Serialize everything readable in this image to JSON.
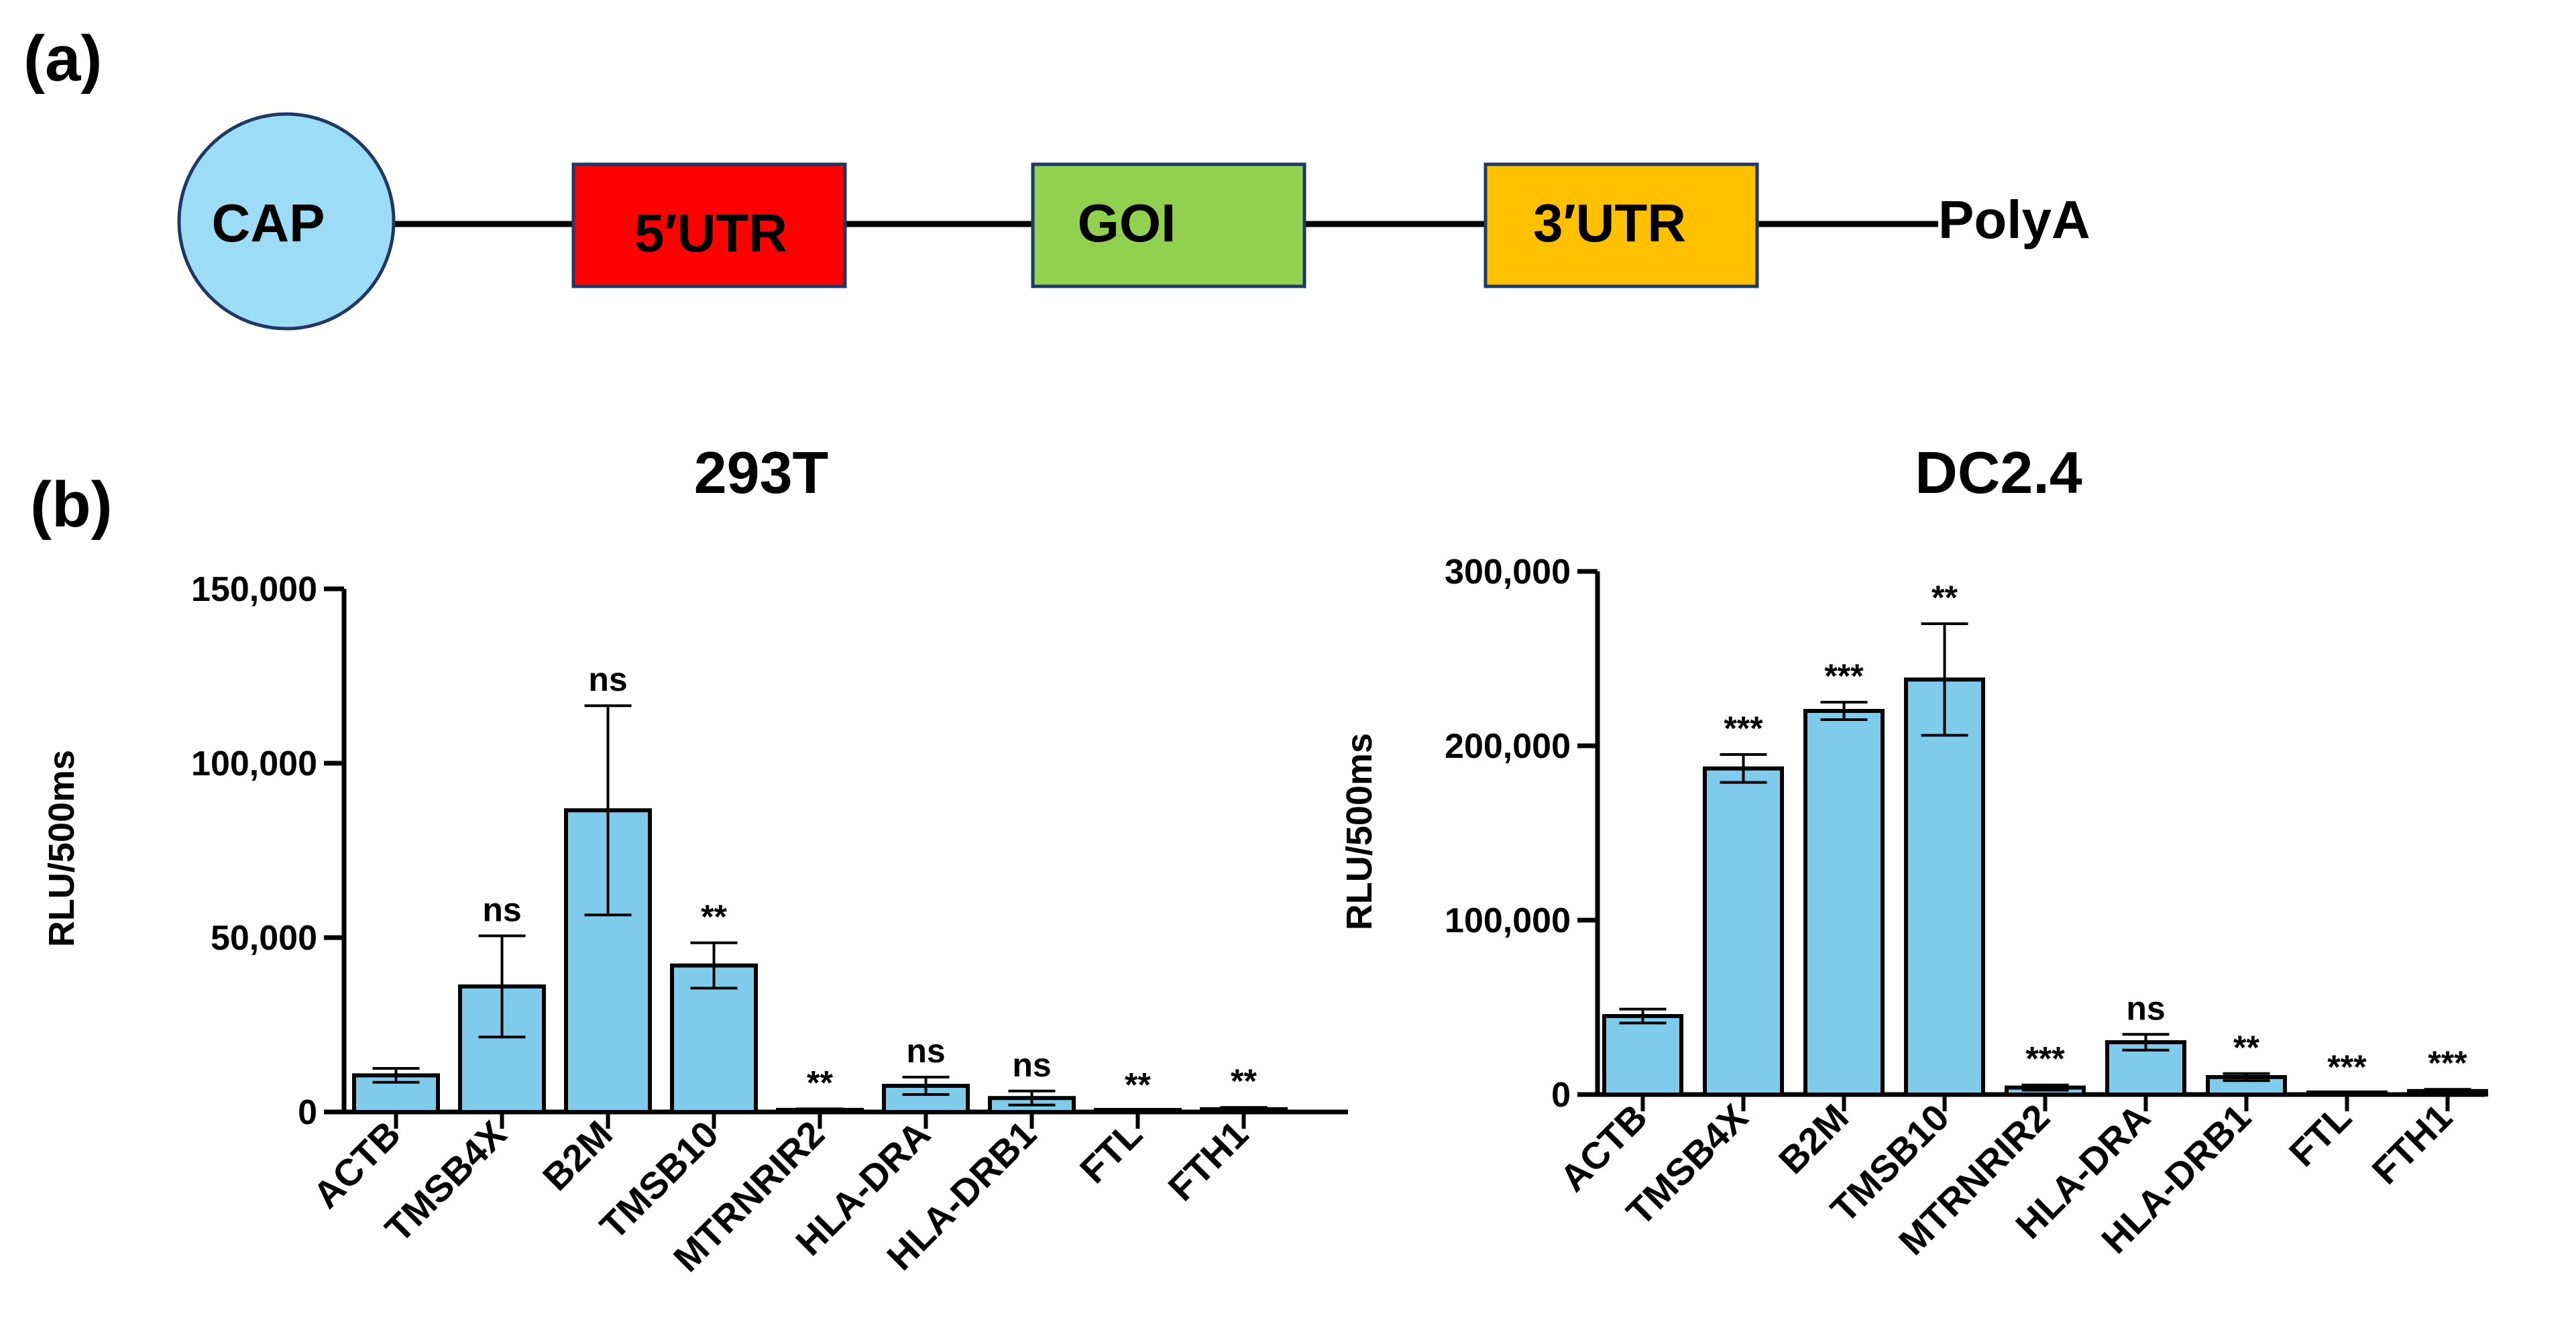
{
  "panel_labels": {
    "a": "(a)",
    "b": "(b)"
  },
  "diagram": {
    "cap": {
      "label": "CAP",
      "color": "#9DDCF6"
    },
    "utr5": {
      "label": "5′UTR",
      "color": "#FF0000"
    },
    "goi": {
      "label": "GOI",
      "color": "#92D050"
    },
    "utr3": {
      "label": "3′UTR",
      "color": "#FFC000"
    },
    "polya": {
      "label": "PolyA"
    }
  },
  "bar_color": "#7ECBEC",
  "chart_data": [
    {
      "type": "bar",
      "title": "293T",
      "xlabel": "",
      "ylabel": "RLU/500ms",
      "ylim": [
        0,
        150000
      ],
      "yticks": [
        0,
        50000,
        100000,
        150000
      ],
      "ytick_labels": [
        "0",
        "50,000",
        "100,000",
        "150,000"
      ],
      "grid": false,
      "categories": [
        "ACTB",
        "TMSB4X",
        "B2M",
        "TMSB10",
        "MTRNRIR2",
        "HLA-DRA",
        "HLA-DRB1",
        "FTL",
        "FTH1"
      ],
      "values": [
        10500,
        36000,
        86500,
        42000,
        600,
        7500,
        4000,
        200,
        800
      ],
      "error": [
        2000,
        14500,
        30000,
        6500,
        300,
        2500,
        2000,
        100,
        500
      ],
      "significance": [
        "",
        "ns",
        "ns",
        "**",
        "**",
        "ns",
        "ns",
        "**",
        "**"
      ]
    },
    {
      "type": "bar",
      "title": "DC2.4",
      "xlabel": "",
      "ylabel": "RLU/500ms",
      "ylim": [
        0,
        300000
      ],
      "yticks": [
        0,
        100000,
        200000,
        300000
      ],
      "ytick_labels": [
        "0",
        "100,000",
        "200,000",
        "300,000"
      ],
      "grid": false,
      "categories": [
        "ACTB",
        "TMSB4X",
        "B2M",
        "TMSB10",
        "MTRNRIR2",
        "HLA-DRA",
        "HLA-DRB1",
        "FTL",
        "FTH1"
      ],
      "values": [
        45000,
        187000,
        220000,
        238000,
        4000,
        30000,
        10000,
        500,
        2000
      ],
      "error": [
        4000,
        8000,
        5000,
        32000,
        1500,
        4500,
        2000,
        300,
        1000
      ],
      "significance": [
        "",
        "***",
        "***",
        "**",
        "***",
        "ns",
        "**",
        "***",
        "***"
      ]
    }
  ]
}
